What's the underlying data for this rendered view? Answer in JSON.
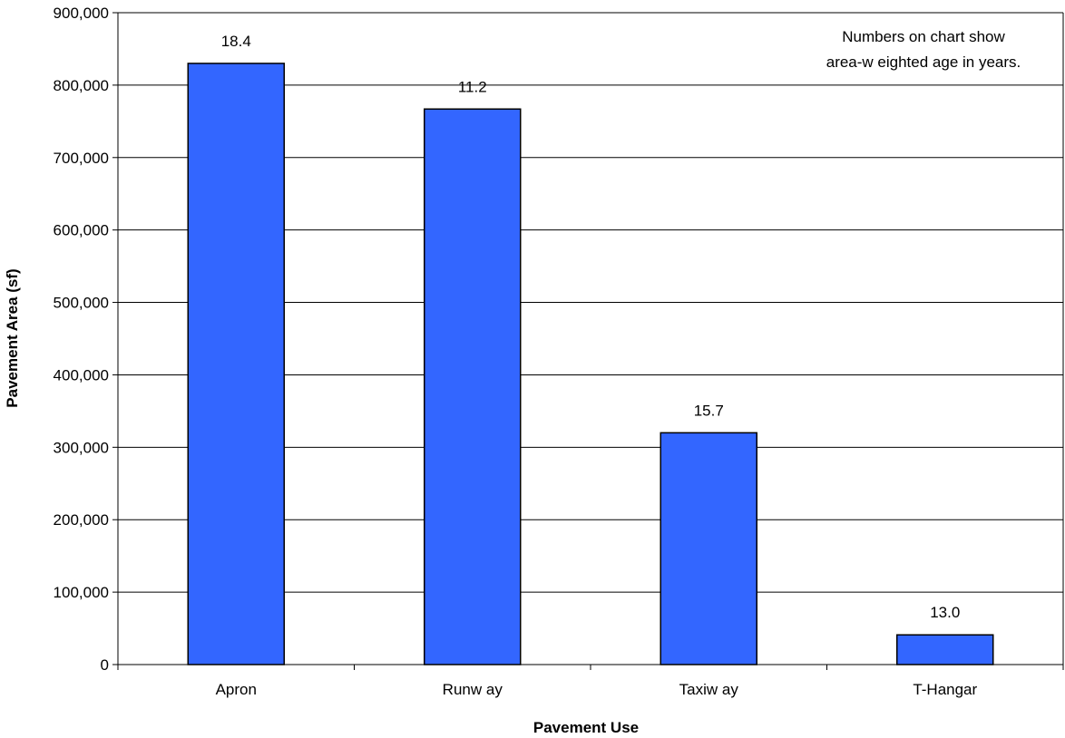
{
  "chart_data": {
    "type": "bar",
    "categories": [
      "Apron",
      "Runw ay",
      "Taxiw ay",
      "T-Hangar"
    ],
    "values": [
      830000,
      767000,
      320000,
      41000
    ],
    "data_labels": [
      "18.4",
      "11.2",
      "15.7",
      "13.0"
    ],
    "xlabel": "Pavement Use",
    "ylabel": "Pavement Area (sf)",
    "ylim": [
      0,
      900000
    ],
    "yticks": [
      0,
      100000,
      200000,
      300000,
      400000,
      500000,
      600000,
      700000,
      800000,
      900000
    ],
    "ytick_labels": [
      "0",
      "100,000",
      "200,000",
      "300,000",
      "400,000",
      "500,000",
      "600,000",
      "700,000",
      "800,000",
      "900,000"
    ],
    "annotation_lines": [
      "Numbers on chart show",
      "area-w eighted age in years."
    ],
    "grid": true,
    "legend": "none",
    "bar_color": "#3366ff",
    "bar_stroke": "#000000",
    "gridline_color": "#000000"
  }
}
